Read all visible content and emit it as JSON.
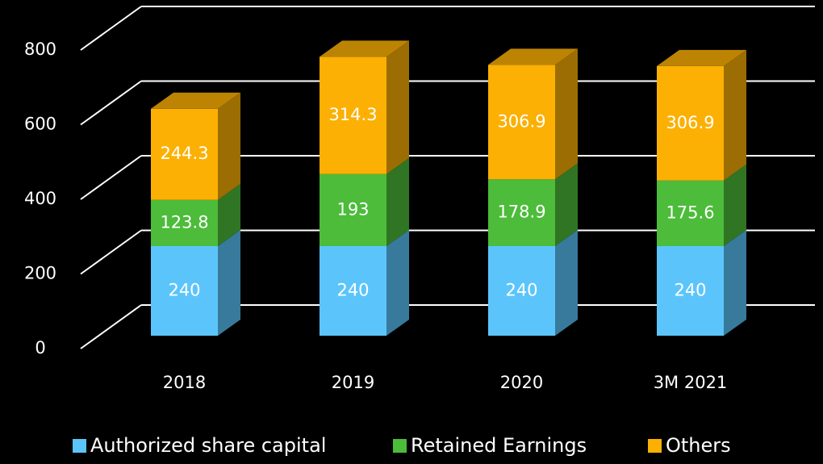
{
  "chart_data": {
    "type": "bar3d_stacked",
    "categories": [
      "2018",
      "2019",
      "2020",
      "3M 2021"
    ],
    "series": [
      {
        "name": "Authorized share  capital",
        "color": "#5bc5fb",
        "values": [
          240,
          240,
          240,
          240
        ]
      },
      {
        "name": "Retained Earnings",
        "color": "#4cbc3a",
        "values": [
          123.8,
          193,
          178.9,
          175.6
        ]
      },
      {
        "name": "Others",
        "color": "#fbb003",
        "values": [
          244.3,
          314.3,
          306.9,
          306.9
        ]
      }
    ],
    "ylim": [
      0,
      800
    ],
    "yticks": [
      0,
      200,
      400,
      600,
      800
    ],
    "grid": true,
    "legend": "bottom"
  }
}
